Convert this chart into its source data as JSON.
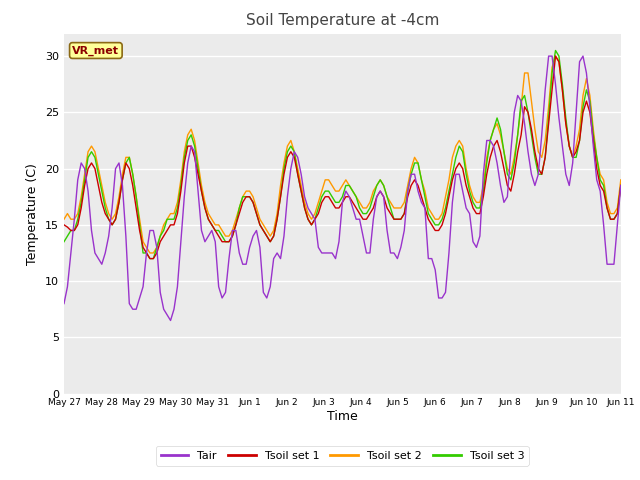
{
  "title": "Soil Temperature at -4cm",
  "xlabel": "Time",
  "ylabel": "Temperature (C)",
  "ylim": [
    0,
    32
  ],
  "yticks": [
    0,
    5,
    10,
    15,
    20,
    25,
    30
  ],
  "annotation_text": "VR_met",
  "fig_bg": "#ffffff",
  "plot_bg": "#ebebeb",
  "line_colors": {
    "Tair": "#9933cc",
    "Tsoil1": "#cc0000",
    "Tsoil2": "#ff9900",
    "Tsoil3": "#33cc00"
  },
  "legend_labels": [
    "Tair",
    "Tsoil set 1",
    "Tsoil set 2",
    "Tsoil set 3"
  ],
  "xtick_labels": [
    "May 27",
    "May 28",
    "May 29",
    "May 30",
    "May 31",
    "Jun 1",
    "Jun 2",
    "Jun 3",
    "Jun 4",
    "Jun 5",
    "Jun 6",
    "Jun 7",
    "Jun 8",
    "Jun 9",
    "Jun 10",
    "Jun 11"
  ],
  "tair": [
    8.0,
    9.5,
    12.5,
    15.5,
    19.0,
    20.5,
    20.0,
    18.0,
    14.5,
    12.5,
    12.0,
    11.5,
    12.5,
    14.0,
    16.5,
    20.0,
    20.5,
    18.5,
    14.0,
    8.0,
    7.5,
    7.5,
    8.5,
    9.5,
    12.5,
    14.5,
    14.5,
    13.0,
    9.0,
    7.5,
    7.0,
    6.5,
    7.5,
    9.5,
    13.5,
    17.5,
    20.5,
    22.0,
    21.5,
    18.0,
    14.5,
    13.5,
    14.0,
    14.5,
    13.5,
    9.5,
    8.5,
    9.0,
    12.0,
    14.5,
    14.5,
    12.5,
    11.5,
    11.5,
    13.0,
    14.0,
    14.5,
    13.0,
    9.0,
    8.5,
    9.5,
    12.0,
    12.5,
    12.0,
    14.0,
    17.5,
    20.0,
    21.5,
    21.0,
    19.5,
    17.5,
    16.5,
    16.0,
    15.5,
    13.0,
    12.5,
    12.5,
    12.5,
    12.5,
    12.0,
    13.5,
    17.0,
    18.0,
    17.5,
    16.5,
    15.5,
    15.5,
    14.0,
    12.5,
    12.5,
    15.5,
    17.5,
    18.0,
    17.5,
    14.5,
    12.5,
    12.5,
    12.0,
    13.0,
    14.5,
    18.0,
    19.5,
    19.5,
    18.0,
    17.0,
    16.5,
    12.0,
    12.0,
    11.0,
    8.5,
    8.5,
    9.0,
    12.5,
    17.0,
    19.5,
    19.5,
    18.0,
    16.5,
    16.0,
    13.5,
    13.0,
    14.0,
    19.5,
    22.5,
    22.5,
    22.0,
    20.5,
    18.5,
    17.0,
    17.5,
    21.5,
    25.0,
    26.5,
    26.0,
    24.0,
    21.5,
    19.5,
    18.5,
    19.5,
    23.0,
    27.0,
    30.0,
    30.0,
    27.5,
    24.5,
    22.0,
    19.5,
    18.5,
    20.5,
    25.0,
    29.5,
    30.0,
    28.5,
    25.5,
    22.0,
    19.0,
    18.0,
    15.0,
    11.5,
    11.5,
    11.5,
    15.0,
    18.5
  ],
  "tsoil1": [
    15.0,
    14.8,
    14.5,
    14.5,
    15.0,
    16.5,
    18.5,
    20.0,
    20.5,
    20.0,
    18.5,
    17.0,
    16.0,
    15.5,
    15.0,
    15.5,
    17.0,
    19.0,
    20.5,
    20.0,
    18.5,
    16.5,
    14.5,
    13.0,
    12.5,
    12.0,
    12.0,
    12.5,
    13.5,
    14.0,
    14.5,
    15.0,
    15.0,
    16.0,
    18.0,
    20.5,
    22.0,
    22.0,
    21.0,
    19.5,
    18.0,
    16.5,
    15.5,
    15.0,
    14.5,
    14.0,
    13.5,
    13.5,
    13.5,
    14.0,
    15.0,
    16.0,
    17.0,
    17.5,
    17.5,
    17.0,
    16.0,
    15.0,
    14.5,
    14.0,
    13.5,
    14.0,
    15.5,
    17.5,
    19.5,
    21.0,
    21.5,
    21.0,
    19.5,
    18.0,
    16.5,
    15.5,
    15.0,
    15.5,
    16.0,
    17.0,
    17.5,
    17.5,
    17.0,
    16.5,
    16.5,
    17.0,
    17.5,
    17.5,
    17.0,
    16.5,
    16.0,
    15.5,
    15.5,
    16.0,
    16.5,
    17.5,
    18.0,
    17.5,
    16.5,
    16.0,
    15.5,
    15.5,
    15.5,
    16.0,
    17.5,
    18.5,
    19.0,
    18.5,
    17.5,
    16.5,
    15.5,
    15.0,
    14.5,
    14.5,
    15.0,
    16.0,
    17.5,
    19.0,
    20.0,
    20.5,
    20.0,
    18.5,
    17.5,
    16.5,
    16.0,
    16.0,
    17.5,
    19.5,
    21.0,
    22.0,
    22.5,
    21.5,
    20.0,
    18.5,
    18.0,
    19.5,
    21.5,
    23.0,
    25.5,
    25.0,
    23.5,
    21.5,
    20.0,
    19.5,
    21.0,
    24.0,
    27.0,
    30.0,
    29.5,
    27.0,
    24.0,
    22.0,
    21.0,
    21.5,
    22.5,
    25.0,
    26.0,
    25.0,
    22.5,
    20.0,
    18.5,
    18.0,
    16.5,
    15.5,
    15.5,
    16.0,
    18.5
  ],
  "tsoil2": [
    15.5,
    16.0,
    15.5,
    15.5,
    16.0,
    17.5,
    19.5,
    21.5,
    22.0,
    21.5,
    20.0,
    18.5,
    17.0,
    16.0,
    15.5,
    16.0,
    17.5,
    19.5,
    21.0,
    21.0,
    19.5,
    17.5,
    15.5,
    13.5,
    13.0,
    12.5,
    12.5,
    13.0,
    14.0,
    15.0,
    15.5,
    16.0,
    16.0,
    17.0,
    19.0,
    21.5,
    23.0,
    23.5,
    22.5,
    20.5,
    18.5,
    17.0,
    16.0,
    15.5,
    15.0,
    15.0,
    14.5,
    14.0,
    14.0,
    14.5,
    15.5,
    16.5,
    17.5,
    18.0,
    18.0,
    17.5,
    16.5,
    15.5,
    15.0,
    14.5,
    14.0,
    14.5,
    16.0,
    18.5,
    20.5,
    22.0,
    22.5,
    21.5,
    20.0,
    18.5,
    17.0,
    16.0,
    15.5,
    16.0,
    17.0,
    18.0,
    19.0,
    19.0,
    18.5,
    18.0,
    18.0,
    18.5,
    19.0,
    18.5,
    18.0,
    17.5,
    17.0,
    16.5,
    16.5,
    17.0,
    18.0,
    18.5,
    19.0,
    18.5,
    17.5,
    17.0,
    16.5,
    16.5,
    16.5,
    17.0,
    18.5,
    20.0,
    21.0,
    20.5,
    19.0,
    18.0,
    16.5,
    16.0,
    15.5,
    15.5,
    16.0,
    17.5,
    19.0,
    21.0,
    22.0,
    22.5,
    22.0,
    20.0,
    18.5,
    17.5,
    17.0,
    17.0,
    18.5,
    21.0,
    22.5,
    23.5,
    24.0,
    23.0,
    21.5,
    20.0,
    19.5,
    21.0,
    23.0,
    25.5,
    28.5,
    28.5,
    26.0,
    23.5,
    21.5,
    21.0,
    22.5,
    25.5,
    29.0,
    30.0,
    29.5,
    27.0,
    24.0,
    22.0,
    21.0,
    22.0,
    23.5,
    26.5,
    28.0,
    26.5,
    23.5,
    21.0,
    19.5,
    19.0,
    17.0,
    16.0,
    16.0,
    16.5,
    19.0
  ],
  "tsoil3": [
    13.5,
    14.0,
    14.5,
    14.5,
    15.5,
    17.0,
    19.0,
    21.0,
    21.5,
    21.0,
    19.5,
    18.0,
    16.5,
    15.5,
    15.0,
    15.5,
    17.0,
    19.0,
    20.5,
    21.0,
    19.5,
    17.5,
    15.0,
    12.5,
    12.5,
    12.0,
    12.0,
    13.0,
    14.0,
    14.5,
    15.5,
    15.5,
    15.5,
    16.5,
    18.5,
    21.0,
    22.5,
    23.0,
    22.0,
    20.0,
    18.0,
    16.5,
    15.5,
    15.0,
    14.5,
    14.5,
    14.0,
    13.5,
    13.5,
    14.0,
    15.0,
    16.5,
    17.5,
    17.5,
    17.5,
    17.0,
    16.0,
    15.0,
    14.5,
    14.0,
    13.5,
    14.0,
    15.5,
    17.5,
    20.0,
    21.5,
    22.0,
    21.5,
    19.5,
    18.0,
    16.5,
    15.5,
    15.0,
    15.5,
    16.5,
    17.5,
    18.0,
    18.0,
    17.5,
    17.0,
    17.0,
    17.5,
    18.5,
    18.5,
    18.0,
    17.5,
    16.5,
    16.0,
    16.0,
    16.5,
    17.5,
    18.5,
    19.0,
    18.5,
    17.5,
    16.5,
    15.5,
    15.5,
    15.5,
    16.0,
    18.0,
    19.5,
    20.5,
    20.5,
    19.0,
    17.5,
    16.0,
    15.5,
    15.0,
    15.0,
    15.5,
    16.5,
    18.0,
    19.5,
    21.0,
    22.0,
    21.5,
    19.5,
    18.0,
    17.0,
    16.5,
    16.5,
    18.0,
    20.5,
    22.5,
    23.5,
    24.5,
    23.5,
    21.5,
    19.5,
    19.0,
    20.5,
    23.0,
    26.0,
    26.5,
    25.0,
    23.0,
    21.0,
    19.5,
    19.5,
    21.0,
    24.5,
    28.5,
    30.5,
    30.0,
    27.5,
    24.5,
    22.0,
    21.0,
    21.0,
    22.5,
    25.5,
    27.0,
    26.0,
    23.0,
    21.0,
    19.0,
    18.5,
    16.5,
    15.5,
    15.5,
    16.0,
    18.5
  ]
}
